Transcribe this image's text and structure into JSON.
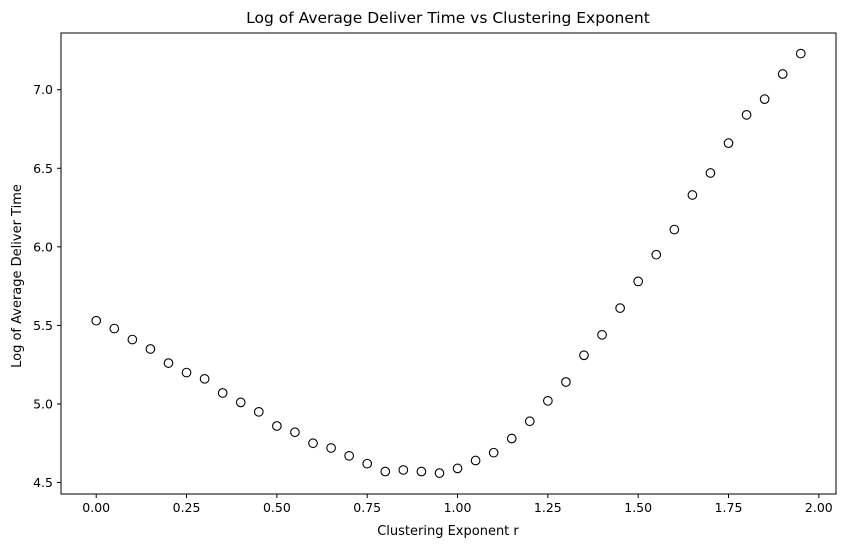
{
  "chart_data": {
    "type": "scatter",
    "title": "Log of Average Deliver Time vs Clustering Exponent",
    "xlabel": "Clustering Exponent r",
    "ylabel": "Log of Average Deliver Time",
    "xlim": [
      -0.0975,
      2.0475
    ],
    "ylim": [
      4.427,
      7.361
    ],
    "xticks": [
      0.0,
      0.25,
      0.5,
      0.75,
      1.0,
      1.25,
      1.5,
      1.75,
      2.0
    ],
    "xtick_labels": [
      "0.00",
      "0.25",
      "0.50",
      "0.75",
      "1.00",
      "1.25",
      "1.50",
      "1.75",
      "2.00"
    ],
    "yticks": [
      4.5,
      5.0,
      5.5,
      6.0,
      6.5,
      7.0
    ],
    "ytick_labels": [
      "4.5",
      "5.0",
      "5.5",
      "6.0",
      "6.5",
      "7.0"
    ],
    "grid": false,
    "marker": "open-circle",
    "marker_color": "#000000",
    "series": [
      {
        "x": [
          0.0,
          0.05,
          0.1,
          0.15,
          0.2,
          0.25,
          0.3,
          0.35,
          0.4,
          0.45,
          0.5,
          0.55,
          0.6,
          0.65,
          0.7,
          0.75,
          0.8,
          0.85,
          0.9,
          0.95,
          1.0,
          1.05,
          1.1,
          1.15,
          1.2,
          1.25,
          1.3,
          1.35,
          1.4,
          1.45,
          1.5,
          1.55,
          1.6,
          1.65,
          1.7,
          1.75,
          1.8,
          1.85,
          1.9,
          1.95
        ],
        "y": [
          5.53,
          5.48,
          5.41,
          5.35,
          5.26,
          5.2,
          5.16,
          5.07,
          5.01,
          4.95,
          4.86,
          4.82,
          4.75,
          4.72,
          4.67,
          4.62,
          4.57,
          4.58,
          4.57,
          4.56,
          4.59,
          4.64,
          4.69,
          4.78,
          4.89,
          5.02,
          5.14,
          5.31,
          5.44,
          5.61,
          5.78,
          5.95,
          6.11,
          6.33,
          6.47,
          6.66,
          6.84,
          6.94,
          7.1,
          7.23
        ]
      }
    ]
  }
}
